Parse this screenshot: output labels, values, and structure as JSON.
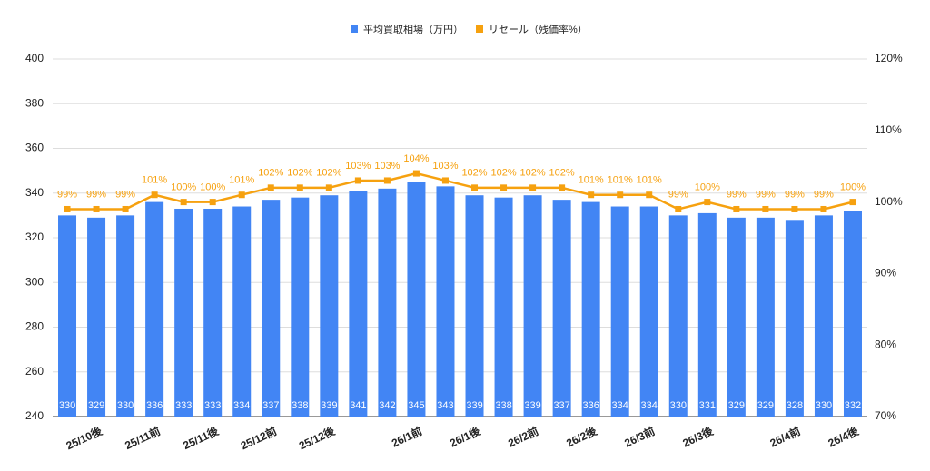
{
  "chart_data": {
    "type": "bar-line",
    "categories": [
      null,
      "25/10後",
      null,
      "25/11前",
      null,
      "25/11後",
      null,
      "25/12前",
      null,
      "25/12後",
      null,
      null,
      "26/1前",
      null,
      "26/1後",
      null,
      "26/2前",
      null,
      "26/2後",
      null,
      "26/3前",
      null,
      "26/3後",
      null,
      null,
      "26/4前",
      null,
      "26/4後"
    ],
    "series": [
      {
        "name": "平均買取相場（万円）",
        "color": "#4285f4",
        "type": "bar",
        "values": [
          330,
          329,
          330,
          336,
          333,
          333,
          334,
          337,
          338,
          339,
          341,
          342,
          345,
          343,
          339,
          338,
          339,
          337,
          336,
          334,
          334,
          330,
          331,
          329,
          329,
          328,
          330,
          332
        ]
      },
      {
        "name": "リセール（残価率%）",
        "color": "#f6a10f",
        "type": "line",
        "axis": "y2",
        "values": [
          99,
          99,
          99,
          101,
          100,
          100,
          101,
          102,
          102,
          102,
          103,
          103,
          104,
          103,
          102,
          102,
          102,
          102,
          101,
          101,
          101,
          99,
          100,
          99,
          99,
          99,
          99,
          100
        ],
        "value_labels": [
          "99%",
          "99%",
          "99%",
          "101%",
          "100%",
          "100%",
          "101%",
          "102%",
          "102%",
          "102%",
          "103%",
          "103%",
          "104%",
          "103%",
          "102%",
          "102%",
          "102%",
          "102%",
          "101%",
          "101%",
          "101%",
          "99%",
          "100%",
          "99%",
          "99%",
          "99%",
          "99%",
          "100%"
        ]
      }
    ],
    "ylim": [
      240,
      400
    ],
    "yticks": [
      240,
      260,
      280,
      300,
      320,
      340,
      360,
      380,
      400
    ],
    "y2lim": [
      70,
      120
    ],
    "y2ticks": [
      {
        "value": 70,
        "label": "70%"
      },
      {
        "value": 80,
        "label": "80%"
      },
      {
        "value": 90,
        "label": "90%"
      },
      {
        "value": 100,
        "label": "100%"
      },
      {
        "value": 110,
        "label": "110%"
      },
      {
        "value": 120,
        "label": "120%"
      }
    ],
    "grid": true,
    "legend": "top"
  }
}
